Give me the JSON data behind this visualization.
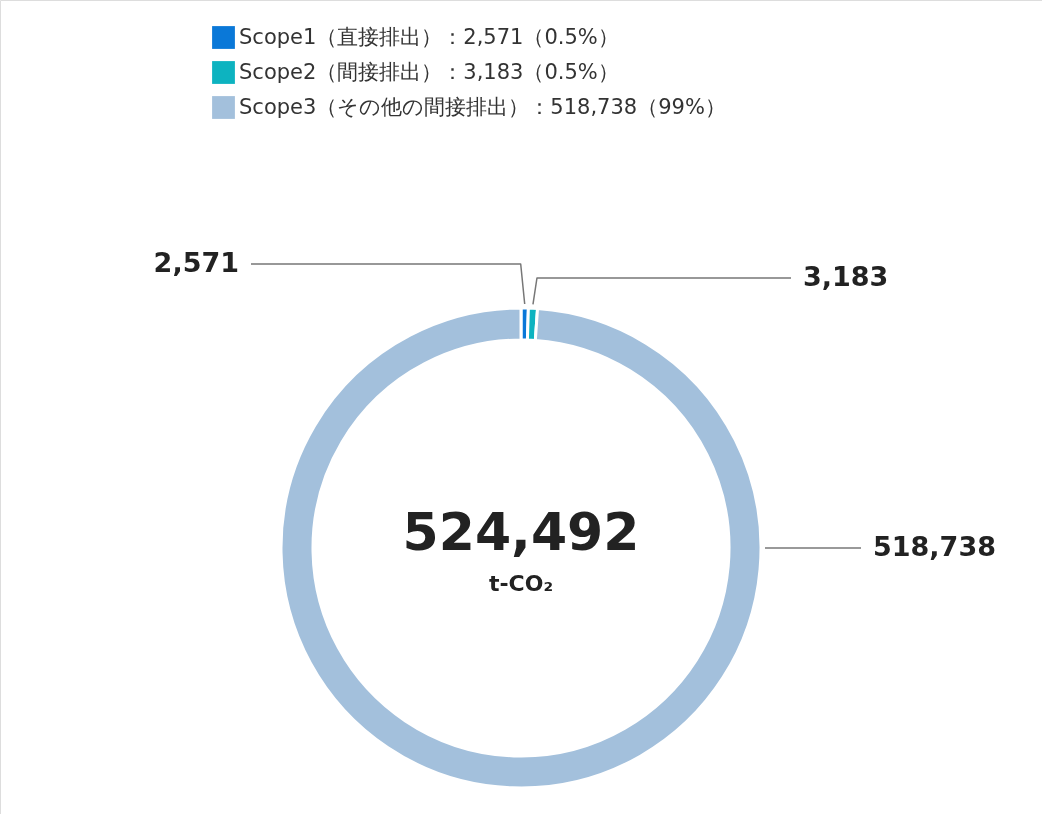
{
  "chart_data": {
    "type": "donut",
    "categories": [
      "Scope1（直接排出）：2,571（0.5%）",
      "Scope2（間接排出）：3,183（0.5%）",
      "Scope3（その他の間接排出）：518,738（99%）"
    ],
    "values": [
      2571,
      3183,
      518738
    ],
    "colors": [
      "#0a78d8",
      "#0db3c0",
      "#a3c0dc"
    ],
    "value_labels": [
      "2,571",
      "3,183",
      "518,738"
    ],
    "legend": "top",
    "annotations": [
      "524,492",
      "t-CO₂"
    ]
  }
}
